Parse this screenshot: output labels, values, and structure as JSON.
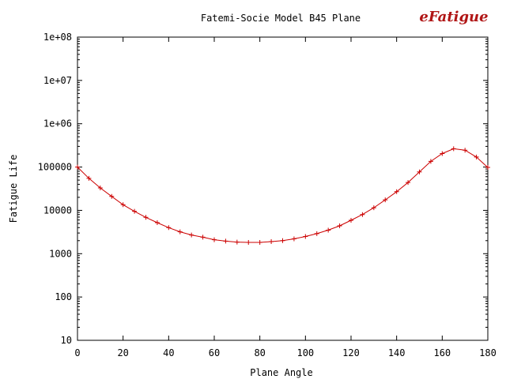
{
  "chart_data": {
    "type": "line",
    "title": "Fatemi-Socie Model B45 Plane",
    "xlabel": "Plane Angle",
    "ylabel": "Fatigue Life",
    "y_scale": "log",
    "xlim": [
      0,
      180
    ],
    "ylim": [
      10,
      100000000
    ],
    "x_ticks": [
      "0",
      "20",
      "40",
      "60",
      "80",
      "100",
      "120",
      "140",
      "160",
      "180"
    ],
    "y_ticks": [
      "10",
      "100",
      "1000",
      "10000",
      "100000",
      "1e+06",
      "1e+07",
      "1e+08"
    ],
    "grid": false,
    "legend": "none",
    "series": [
      {
        "color": "#cc0000",
        "marker": "plus",
        "x": [
          0,
          5,
          10,
          15,
          20,
          25,
          30,
          35,
          40,
          45,
          50,
          55,
          60,
          65,
          70,
          75,
          80,
          85,
          90,
          95,
          100,
          105,
          110,
          115,
          120,
          125,
          130,
          135,
          140,
          145,
          150,
          155,
          160,
          165,
          170,
          175,
          180
        ],
        "y": [
          100000,
          55000,
          33000,
          21000,
          13500,
          9500,
          6900,
          5200,
          4000,
          3200,
          2700,
          2400,
          2100,
          1950,
          1850,
          1820,
          1820,
          1900,
          2000,
          2200,
          2500,
          2900,
          3500,
          4400,
          5900,
          8000,
          11500,
          17500,
          27000,
          44000,
          77000,
          135000,
          205000,
          265000,
          245000,
          170000,
          98000
        ]
      }
    ]
  },
  "logo": {
    "text": "eFatigue"
  }
}
